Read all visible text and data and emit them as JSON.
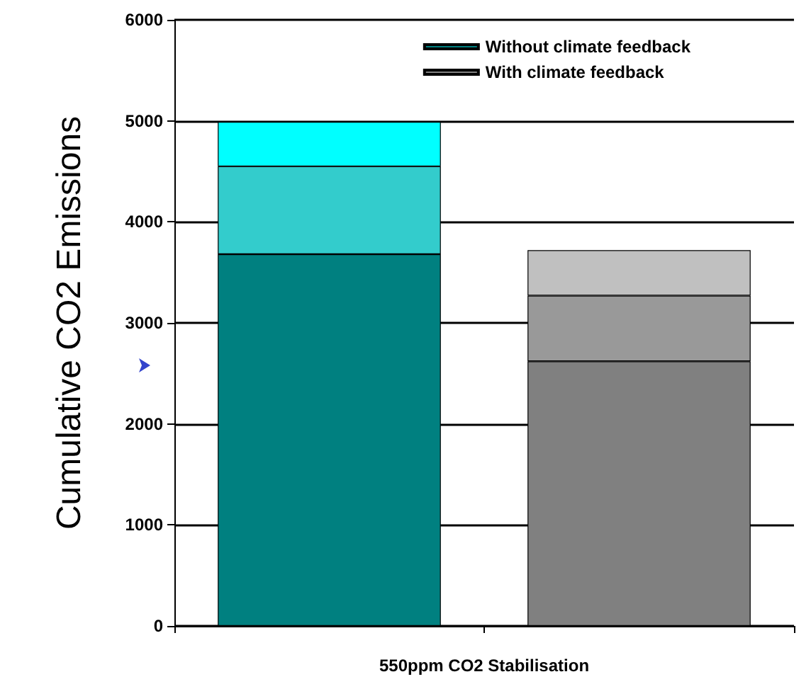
{
  "chart_data": {
    "type": "bar",
    "stacked": true,
    "xlabel": "550ppm CO2 Stabilisation",
    "ylabel": "Cumulative CO2 Emissions",
    "categories": [
      null,
      null
    ],
    "series": [
      {
        "name": "Without climate feedback",
        "color": "#008080",
        "values": [
          3680,
          null
        ]
      },
      {
        "color": "#33cccc",
        "values": [
          870,
          null
        ]
      },
      {
        "color": "#00ffff",
        "values": [
          440,
          null
        ]
      },
      {
        "name": "With climate feedback",
        "color": "#808080",
        "values": [
          null,
          2620
        ]
      },
      {
        "color": "#999999",
        "values": [
          null,
          650
        ]
      },
      {
        "color": "#c0c0c0",
        "values": [
          null,
          450
        ]
      }
    ],
    "ylim": [
      0,
      6000
    ],
    "yticks": [
      0,
      1000,
      2000,
      3000,
      4000,
      5000,
      6000
    ],
    "grid": "y",
    "legend": "top right"
  }
}
